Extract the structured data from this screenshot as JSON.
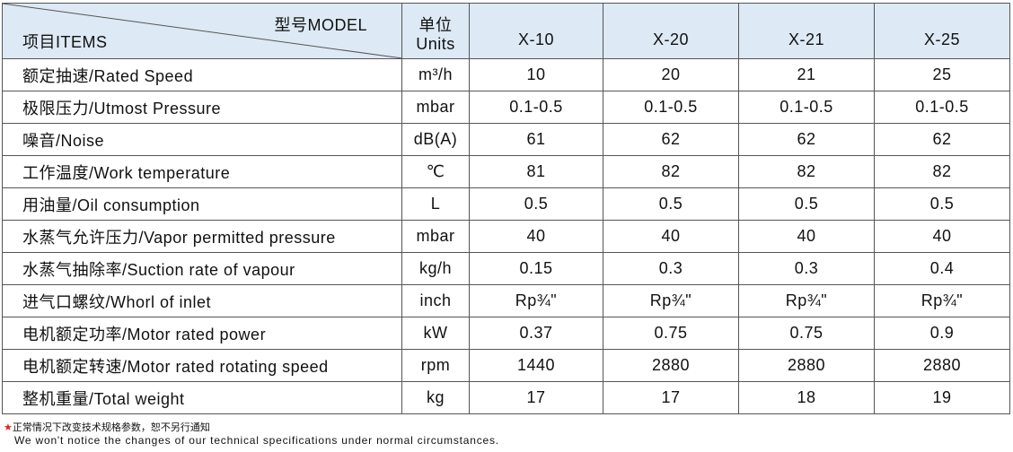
{
  "header": {
    "model_label": "型号MODEL",
    "items_label": "项目ITEMS",
    "units_label_cn": "单位",
    "units_label_en": "Units",
    "models": [
      "X-10",
      "X-20",
      "X-21",
      "X-25"
    ]
  },
  "table": {
    "rows": [
      {
        "item": "额定抽速/Rated Speed",
        "unit": "m³/h",
        "values": [
          "10",
          "20",
          "21",
          "25"
        ]
      },
      {
        "item": "极限压力/Utmost Pressure",
        "unit": "mbar",
        "values": [
          "0.1-0.5",
          "0.1-0.5",
          "0.1-0.5",
          "0.1-0.5"
        ]
      },
      {
        "item": "噪音/Noise",
        "unit": "dB(A)",
        "values": [
          "61",
          "62",
          "62",
          "62"
        ]
      },
      {
        "item": "工作温度/Work temperature",
        "unit": "℃",
        "values": [
          "81",
          "82",
          "82",
          "82"
        ]
      },
      {
        "item": "用油量/Oil consumption",
        "unit": "L",
        "values": [
          "0.5",
          "0.5",
          "0.5",
          "0.5"
        ]
      },
      {
        "item": "水蒸气允许压力/Vapor permitted pressure",
        "unit": "mbar",
        "values": [
          "40",
          "40",
          "40",
          "40"
        ]
      },
      {
        "item": "水蒸气抽除率/Suction rate of vapour",
        "unit": "kg/h",
        "values": [
          "0.15",
          "0.3",
          "0.3",
          "0.4"
        ]
      },
      {
        "item": "进气口螺纹/Whorl of inlet",
        "unit": "inch",
        "values": [
          "Rp¾\"",
          "Rp¾\"",
          "Rp¾\"",
          "Rp¾\""
        ]
      },
      {
        "item": "电机额定功率/Motor rated power",
        "unit": "kW",
        "values": [
          "0.37",
          "0.75",
          "0.75",
          "0.9"
        ]
      },
      {
        "item": "电机额定转速/Motor rated rotating speed",
        "unit": "rpm",
        "values": [
          "1440",
          "2880",
          "2880",
          "2880"
        ]
      },
      {
        "item": "整机重量/Total weight",
        "unit": "kg",
        "values": [
          "17",
          "17",
          "18",
          "19"
        ]
      }
    ]
  },
  "note": {
    "star": "★",
    "cn": "正常情况下改变技术规格参数，恕不另行通知",
    "en": "We won't notice the changes of our technical specifications under normal circumstances."
  }
}
